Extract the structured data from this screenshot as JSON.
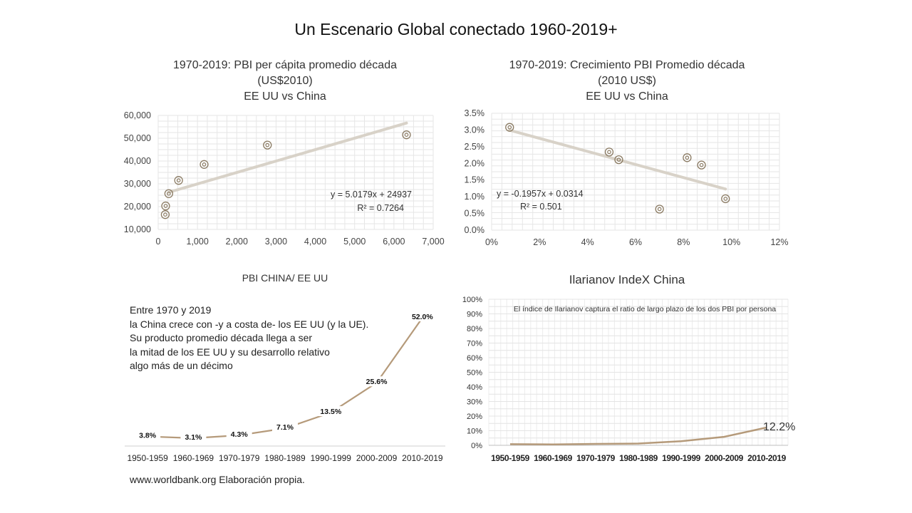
{
  "slide": {
    "title": "Un Escenario Global conectado 1960-2019+",
    "source": "www.worldbank.org  Elaboración propia."
  },
  "colors": {
    "series": "#b59a7a",
    "trend": "#d8d2c8",
    "grid": "#e6e6e6",
    "marker": "#8a7a62"
  },
  "chart_data": [
    {
      "type": "scatter",
      "title_lines": [
        "1970-2019: PBI per cápita promedio década",
        "(US$2010)",
        "EE UU vs China"
      ],
      "xlim": [
        0,
        7000
      ],
      "ylim": [
        10000,
        60000
      ],
      "x_ticks": [
        "0",
        "1,000",
        "2,000",
        "3,000",
        "4,000",
        "5,000",
        "6,000",
        "7,000"
      ],
      "y_ticks": [
        "60,000",
        "50,000",
        "40,000",
        "30,000",
        "20,000",
        "10,000"
      ],
      "points": [
        {
          "x": 180,
          "y": 16500
        },
        {
          "x": 190,
          "y": 20300
        },
        {
          "x": 270,
          "y": 25700
        },
        {
          "x": 520,
          "y": 31500
        },
        {
          "x": 1170,
          "y": 38500
        },
        {
          "x": 2780,
          "y": 47000
        },
        {
          "x": 6320,
          "y": 51500
        }
      ],
      "trendline": {
        "slope": 5.0179,
        "intercept": 24937,
        "x_range": [
          270,
          6320
        ]
      },
      "equation": "y = 5.0179x + 24937",
      "r2": "R² = 0.7264",
      "grid": true
    },
    {
      "type": "scatter",
      "title_lines": [
        "1970-2019:  Crecimiento PBI Promedio década",
        "(2010 US$)",
        "EE UU vs China"
      ],
      "xlim": [
        0,
        0.12
      ],
      "ylim": [
        0,
        0.035
      ],
      "x_ticks": [
        "0%",
        "2%",
        "4%",
        "6%",
        "8%",
        "10%",
        "12%"
      ],
      "y_ticks": [
        "3.5%",
        "3.0%",
        "2.5%",
        "2.0%",
        "1.5%",
        "1.0%",
        "0.5%",
        "0.0%"
      ],
      "points": [
        {
          "x": 0.0075,
          "y": 0.0308
        },
        {
          "x": 0.049,
          "y": 0.0234
        },
        {
          "x": 0.053,
          "y": 0.0211
        },
        {
          "x": 0.07,
          "y": 0.0063
        },
        {
          "x": 0.0815,
          "y": 0.0217
        },
        {
          "x": 0.0875,
          "y": 0.0195
        },
        {
          "x": 0.0975,
          "y": 0.0094
        }
      ],
      "trendline": {
        "slope": -0.1957,
        "intercept": 0.0314,
        "x_range": [
          0.0075,
          0.0975
        ]
      },
      "equation": "y = -0.1957x + 0.0314",
      "r2": "R² = 0.501",
      "grid": true
    },
    {
      "type": "line",
      "title": "PBI CHINA/ EE UU",
      "categories": [
        "1950-1959",
        "1960-1969",
        "1970-1979",
        "1980-1989",
        "1990-1999",
        "2000-2009",
        "2010-2019"
      ],
      "values": [
        3.8,
        3.1,
        4.3,
        7.1,
        13.5,
        25.6,
        52.0
      ],
      "value_labels": [
        "3.8%",
        "3.1%",
        "4.3%",
        "7.1%",
        "13.5%",
        "25.6%",
        "52.0%"
      ],
      "ylim": [
        0,
        55
      ],
      "note_lines": [
        "Entre 1970 y 2019",
        "la China crece con -y a costa de- los EE UU (y la UE).",
        "Su producto promedio década llega a ser",
        "la mitad  de los EE UU y su desarrollo relativo",
        "algo más de un décimo"
      ],
      "grid": false
    },
    {
      "type": "line",
      "title": "Ilarianov IndeX China",
      "subtitle": "El índice de Ilarianov captura el ratio de largo plazo de los dos  PBI por persona",
      "categories": [
        "1950-1959",
        "1960-1969",
        "1970-1979",
        "1980-1989",
        "1990-1999",
        "2000-2009",
        "2010-2019"
      ],
      "values": [
        0.8,
        0.6,
        1.0,
        1.2,
        2.8,
        5.8,
        12.2
      ],
      "end_label": "12.2%",
      "ylim": [
        0,
        100
      ],
      "y_ticks": [
        "100%",
        "90%",
        "80%",
        "70%",
        "60%",
        "50%",
        "40%",
        "30%",
        "20%",
        "10%",
        "0%"
      ],
      "grid": true
    }
  ]
}
